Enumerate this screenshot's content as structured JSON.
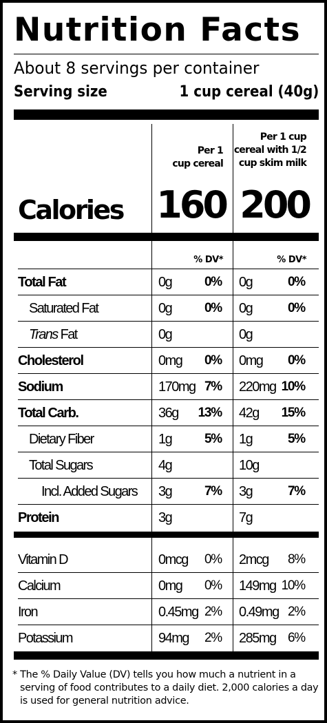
{
  "label": {
    "title": "Nutrition Facts",
    "servings_per_container": "About 8 servings per container",
    "serving_size_label": "Serving size",
    "serving_size_value": "1 cup cereal (40g)",
    "columns": [
      {
        "heading_lines": [
          "Per 1",
          "cup cereal"
        ]
      },
      {
        "heading_lines": [
          "Per 1 cup",
          "cereal with 1/2",
          "cup skim milk"
        ]
      }
    ],
    "calories_label": "Calories",
    "calories": [
      "160",
      "200"
    ],
    "dv_header": "% DV*",
    "nutrients": [
      {
        "name": "Total Fat",
        "style": "bold",
        "indent": 0,
        "col1": {
          "amount": "0g",
          "dv": "0%"
        },
        "col2": {
          "amount": "0g",
          "dv": "0%"
        }
      },
      {
        "name": "Saturated Fat",
        "style": "normal",
        "indent": 1,
        "col1": {
          "amount": "0g",
          "dv": "0%"
        },
        "col2": {
          "amount": "0g",
          "dv": "0%"
        }
      },
      {
        "name": "Trans Fat",
        "style": "trans",
        "indent": 1,
        "col1": {
          "amount": "0g",
          "dv": ""
        },
        "col2": {
          "amount": "0g",
          "dv": ""
        }
      },
      {
        "name": "Cholesterol",
        "style": "bold",
        "indent": 0,
        "col1": {
          "amount": "0mg",
          "dv": "0%"
        },
        "col2": {
          "amount": "0mg",
          "dv": "0%"
        }
      },
      {
        "name": "Sodium",
        "style": "bold",
        "indent": 0,
        "col1": {
          "amount": "170mg",
          "dv": "7%"
        },
        "col2": {
          "amount": "220mg",
          "dv": "10%"
        }
      },
      {
        "name": "Total Carb.",
        "style": "bold",
        "indent": 0,
        "col1": {
          "amount": "36g",
          "dv": "13%"
        },
        "col2": {
          "amount": "42g",
          "dv": "15%"
        }
      },
      {
        "name": "Dietary Fiber",
        "style": "normal",
        "indent": 1,
        "col1": {
          "amount": "1g",
          "dv": "5%"
        },
        "col2": {
          "amount": "1g",
          "dv": "5%"
        }
      },
      {
        "name": "Total Sugars",
        "style": "normal",
        "indent": 1,
        "col1": {
          "amount": "4g",
          "dv": ""
        },
        "col2": {
          "amount": "10g",
          "dv": ""
        }
      },
      {
        "name": "Incl. Added Sugars",
        "style": "normal",
        "indent": 2,
        "col1": {
          "amount": "3g",
          "dv": "7%"
        },
        "col2": {
          "amount": "3g",
          "dv": "7%"
        }
      },
      {
        "name": "Protein",
        "style": "bold",
        "indent": 0,
        "col1": {
          "amount": "3g",
          "dv": ""
        },
        "col2": {
          "amount": "7g",
          "dv": ""
        }
      }
    ],
    "vitamins": [
      {
        "name": "Vitamin D",
        "col1": {
          "amount": "0mcg",
          "dv": "0%"
        },
        "col2": {
          "amount": "2mcg",
          "dv": "8%"
        }
      },
      {
        "name": "Calcium",
        "col1": {
          "amount": "0mg",
          "dv": "0%"
        },
        "col2": {
          "amount": "149mg",
          "dv": "10%"
        }
      },
      {
        "name": "Iron",
        "col1": {
          "amount": "0.45mg",
          "dv": "2%"
        },
        "col2": {
          "amount": "0.49mg",
          "dv": "2%"
        }
      },
      {
        "name": "Potassium",
        "col1": {
          "amount": "94mg",
          "dv": "2%"
        },
        "col2": {
          "amount": "285mg",
          "dv": "6%"
        }
      }
    ],
    "footnote_lines": [
      "* The % Daily Value (DV) tells you how much a nutrient in a",
      "serving of food contributes to a daily diet. 2,000 calories a day",
      "is used for general nutrition advice."
    ]
  }
}
